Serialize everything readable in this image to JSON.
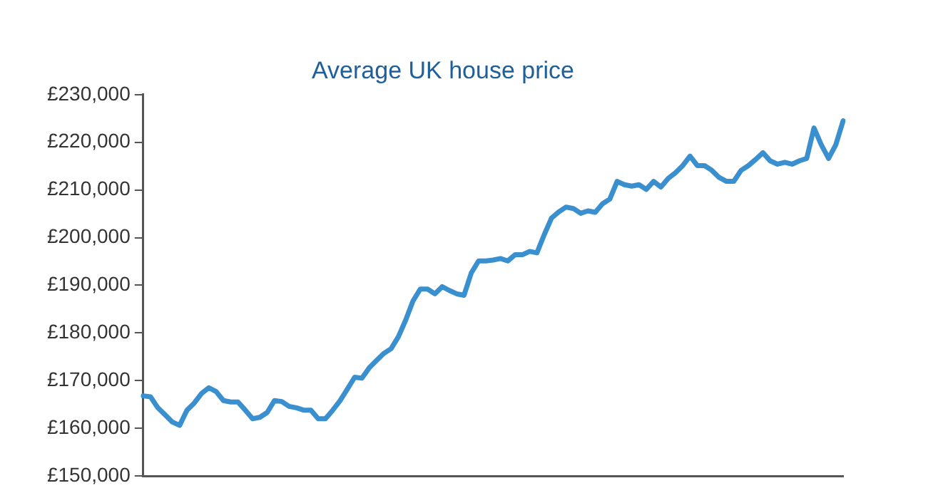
{
  "chart_data": {
    "type": "line",
    "title": "Average UK house price",
    "categories": [
      null,
      null,
      null,
      null,
      null,
      null,
      null,
      null,
      null,
      null,
      null,
      null,
      null,
      null,
      null,
      null,
      null,
      null,
      null,
      null,
      null,
      null,
      null,
      null,
      null,
      null,
      null,
      null,
      null,
      null,
      null,
      null,
      null,
      null,
      null,
      null,
      null,
      null,
      null,
      null,
      null,
      null,
      null,
      null,
      null,
      null,
      null,
      null,
      null,
      null,
      null,
      null,
      null,
      null,
      null,
      null,
      null,
      null,
      null,
      null,
      null,
      null,
      null,
      null,
      null,
      null,
      null,
      null,
      null,
      null,
      null,
      null,
      null,
      null,
      null,
      null,
      null,
      null,
      null,
      null,
      null,
      null,
      null,
      null,
      null,
      null,
      null,
      null,
      null,
      null,
      null,
      null,
      null,
      null,
      null,
      null,
      null
    ],
    "series": [
      {
        "color": "#3a8fcf",
        "values": [
          166800,
          166600,
          164300,
          162800,
          161300,
          160600,
          163800,
          165300,
          167300,
          168500,
          167700,
          165800,
          165500,
          165500,
          163800,
          162000,
          162300,
          163300,
          165800,
          165600,
          164600,
          164300,
          163800,
          163800,
          162000,
          162000,
          163800,
          165800,
          168200,
          170700,
          170500,
          172700,
          174200,
          175700,
          176700,
          179200,
          182700,
          186700,
          189200,
          189200,
          188200,
          189700,
          188900,
          188200,
          187900,
          192600,
          195100,
          195100,
          195300,
          195600,
          195100,
          196400,
          196400,
          197100,
          196800,
          200600,
          204100,
          205400,
          206400,
          206100,
          205100,
          205600,
          205300,
          207100,
          208100,
          211800,
          211100,
          210800,
          211100,
          210100,
          211800,
          210600,
          212400,
          213600,
          215100,
          217100,
          215100,
          215100,
          214100,
          212600,
          211800,
          211800,
          214100,
          215100,
          216400,
          217800,
          216100,
          215400,
          215800,
          215400,
          216100,
          216600,
          223000,
          219500,
          216600,
          219500,
          224500
        ]
      }
    ],
    "ylim": [
      150000,
      230000
    ],
    "yticks": [
      {
        "value": 150000,
        "label": "£150,000"
      },
      {
        "value": 160000,
        "label": "£160,000"
      },
      {
        "value": 170000,
        "label": "£170,000"
      },
      {
        "value": 180000,
        "label": "£180,000"
      },
      {
        "value": 190000,
        "label": "£190,000"
      },
      {
        "value": 200000,
        "label": "£200,000"
      },
      {
        "value": 210000,
        "label": "£210,000"
      },
      {
        "value": 220000,
        "label": "£220,000"
      },
      {
        "value": 230000,
        "label": "£230,000"
      }
    ],
    "tick_labels": "y",
    "grid": false,
    "legend": false,
    "marker": "none",
    "line_style": "solid"
  }
}
